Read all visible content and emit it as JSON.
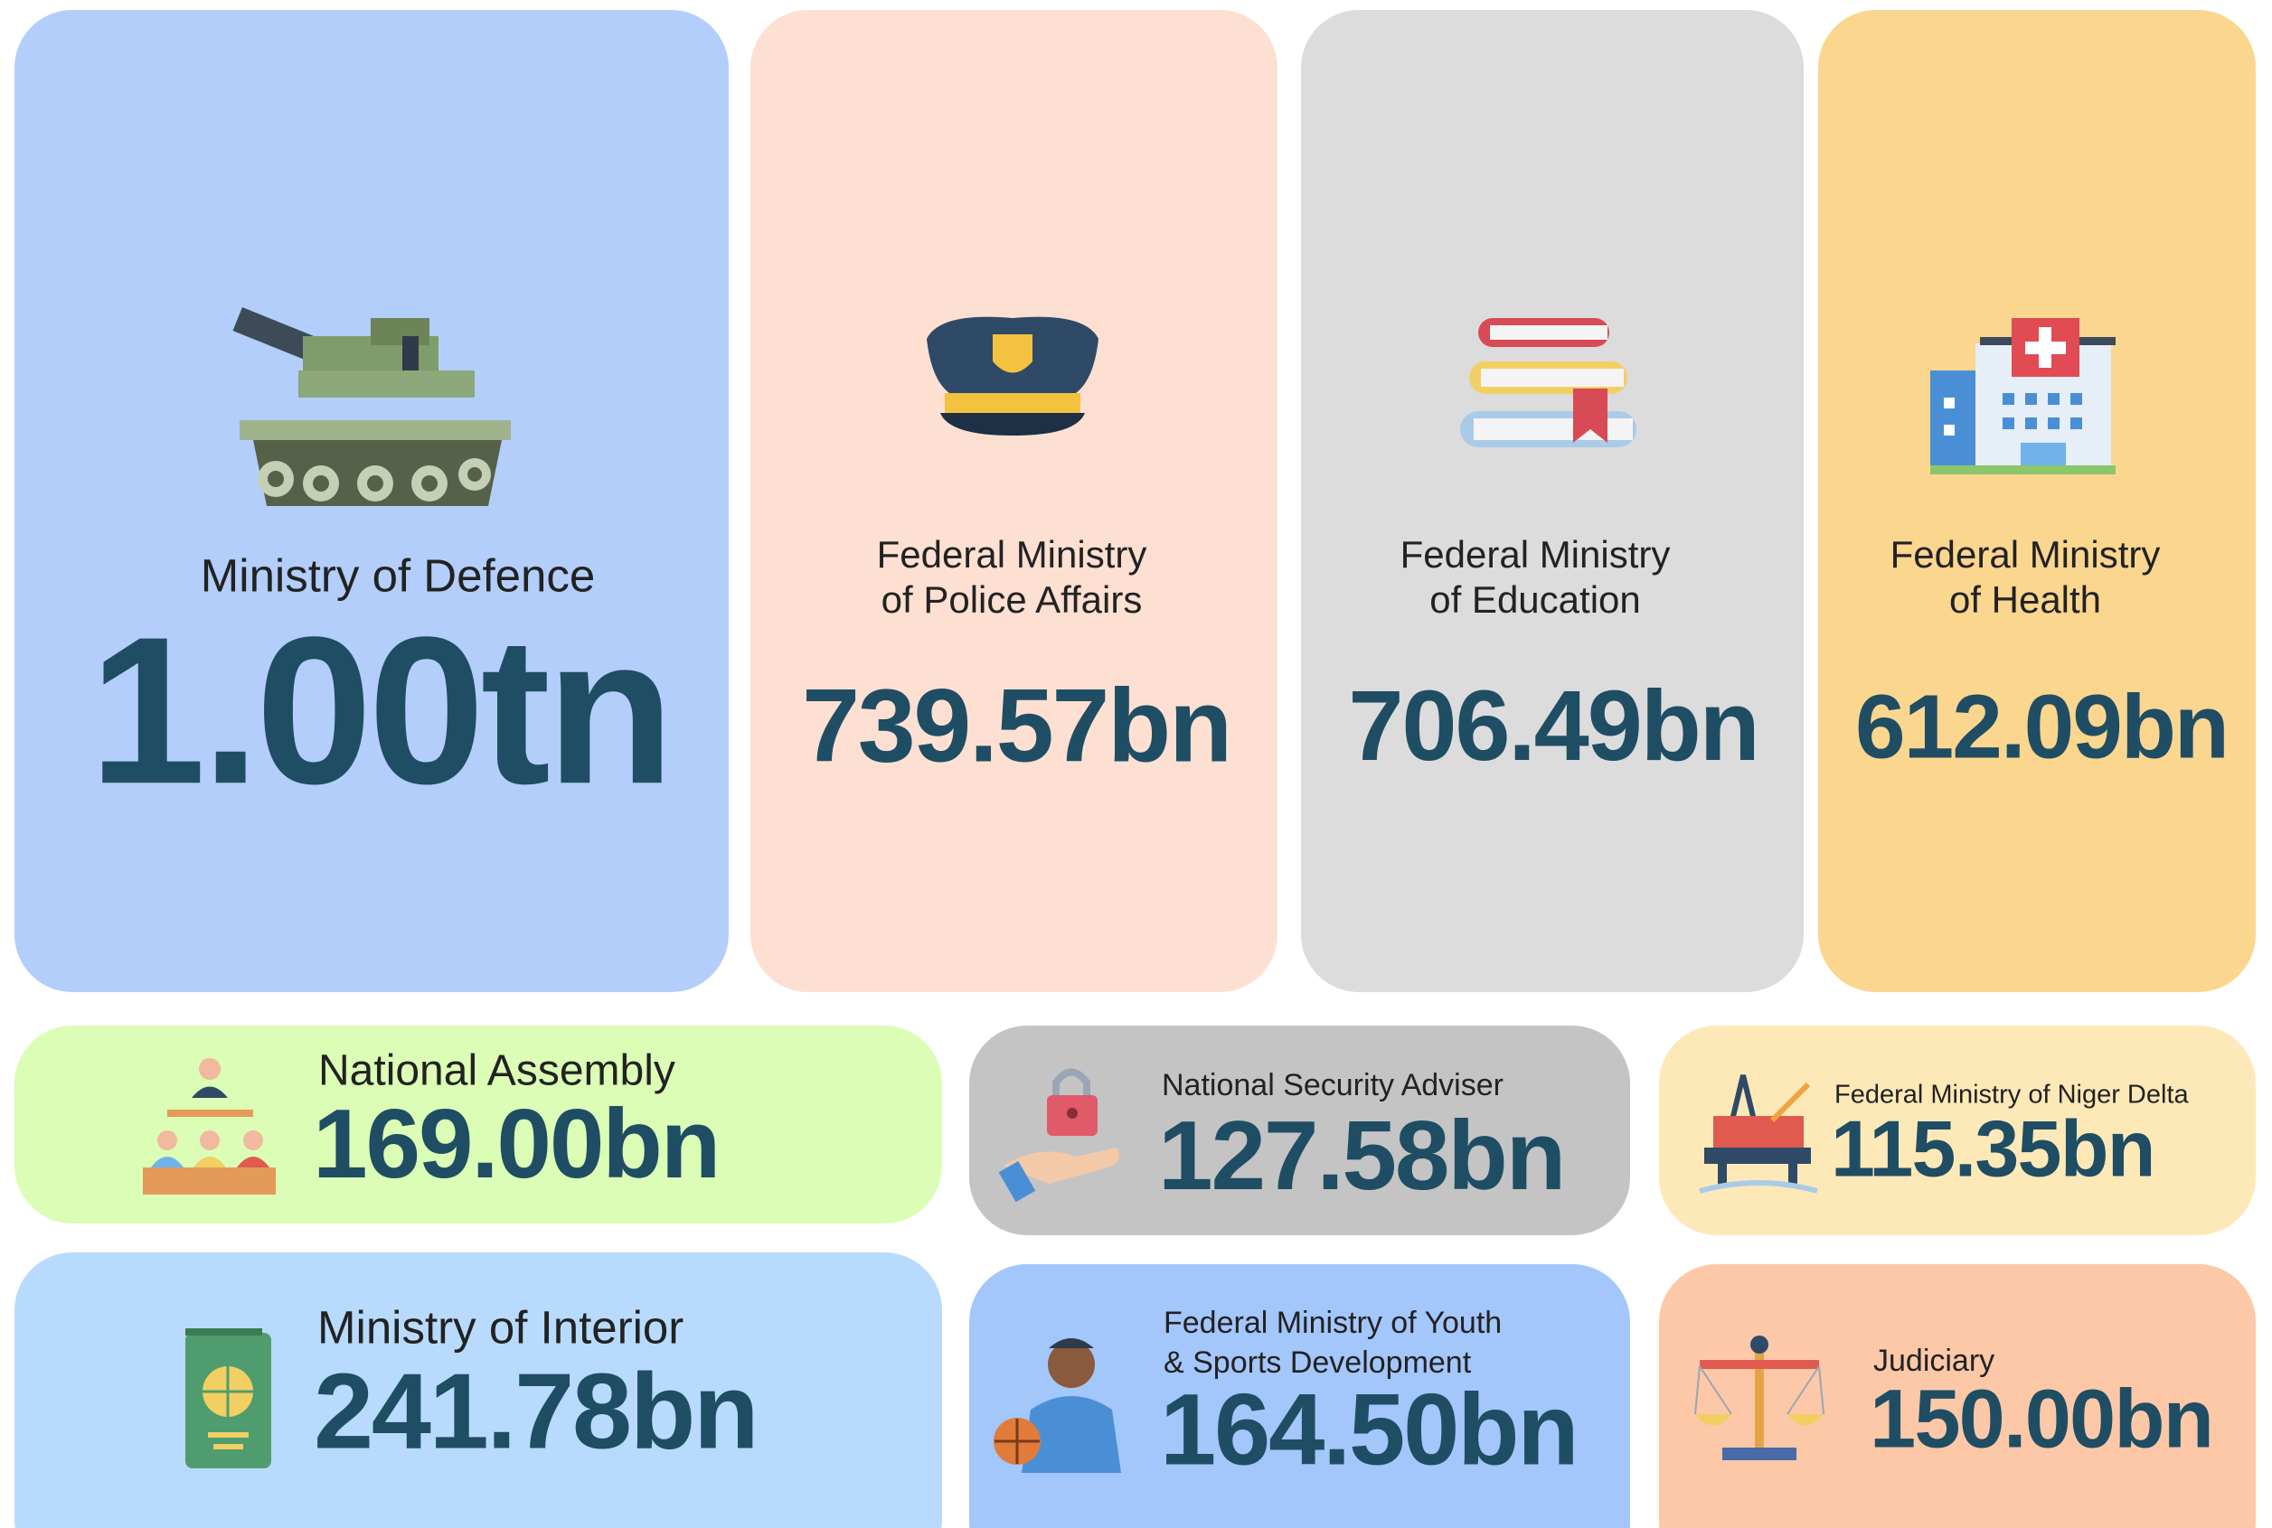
{
  "cards": [
    {
      "label": [
        "Ministry of Defence"
      ],
      "value": "1.00tn"
    },
    {
      "label": [
        "Federal Ministry",
        "of Police Affairs"
      ],
      "value": "739.57bn"
    },
    {
      "label": [
        "Federal Ministry",
        "of Education"
      ],
      "value": "706.49bn"
    },
    {
      "label": [
        "Federal Ministry",
        "of Health"
      ],
      "value": "612.09bn"
    },
    {
      "label": [
        "National Assembly"
      ],
      "value": "169.00bn"
    },
    {
      "label": [
        "National Security Adviser"
      ],
      "value": "127.58bn"
    },
    {
      "label": [
        "Federal Ministry of Niger Delta"
      ],
      "value": "115.35bn"
    },
    {
      "label": [
        "Ministry of Interior"
      ],
      "value": "241.78bn"
    },
    {
      "label": [
        "Federal Ministry of Youth",
        "& Sports Development"
      ],
      "value": "164.50bn"
    },
    {
      "label": [
        "Judiciary"
      ],
      "value": "150.00bn"
    }
  ]
}
